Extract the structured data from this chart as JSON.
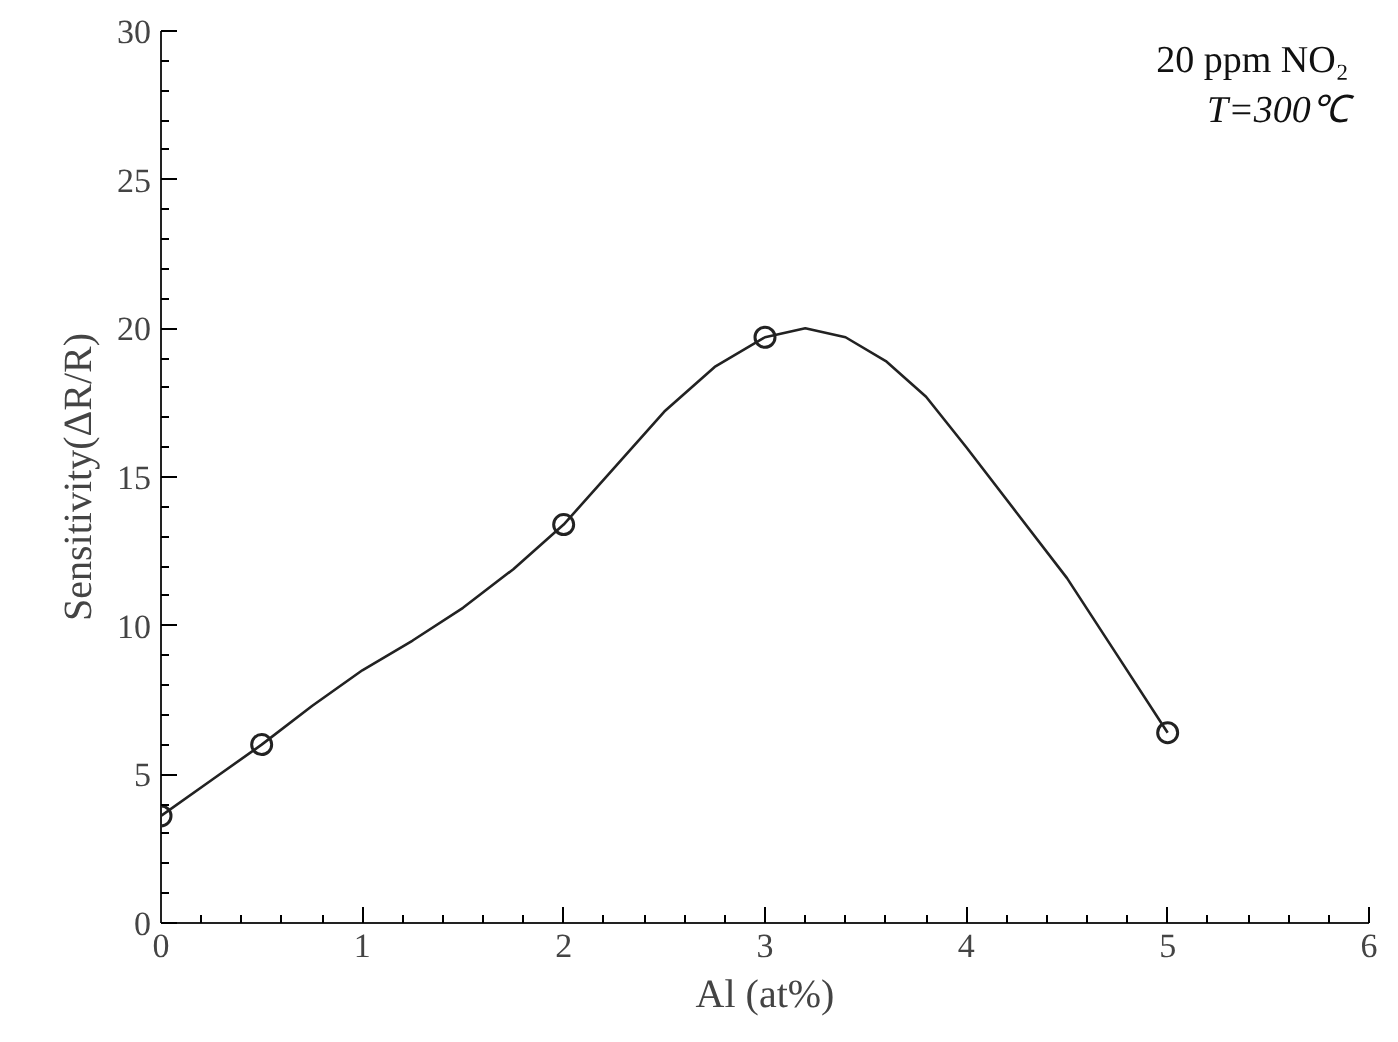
{
  "chart_data": {
    "type": "scatter",
    "xlabel": "Al (at%)",
    "ylabel": "Sensitivity(ΔR/R)",
    "x": [
      0,
      0.5,
      2,
      3,
      5
    ],
    "series": [
      {
        "color": "#222222",
        "marker": "circle",
        "values": [
          3.6,
          6.0,
          13.4,
          19.7,
          6.4
        ]
      },
      {
        "type": "line",
        "color": "#222222",
        "marker": "none",
        "x": [
          0,
          0.25,
          0.5,
          0.75,
          1,
          1.25,
          1.5,
          1.75,
          2,
          2.25,
          2.5,
          2.75,
          3,
          3.2,
          3.4,
          3.6,
          3.8,
          4,
          4.25,
          4.5,
          4.75,
          5
        ],
        "values": [
          3.6,
          4.8,
          6.0,
          7.3,
          8.5,
          9.5,
          10.6,
          11.9,
          13.4,
          15.3,
          17.2,
          18.7,
          19.7,
          20.0,
          19.7,
          18.9,
          17.7,
          16.0,
          13.8,
          11.6,
          9.0,
          6.4
        ]
      }
    ],
    "xlim": [
      0,
      6
    ],
    "xticks": [
      0,
      1,
      2,
      3,
      4,
      5,
      6
    ],
    "ylim": [
      0,
      30
    ],
    "yticks": [
      0,
      5,
      10,
      15,
      20,
      25,
      30
    ],
    "line_style": "solid",
    "grid": false,
    "annotations": [
      "20 ppm NO₂",
      "T=300℃"
    ]
  }
}
